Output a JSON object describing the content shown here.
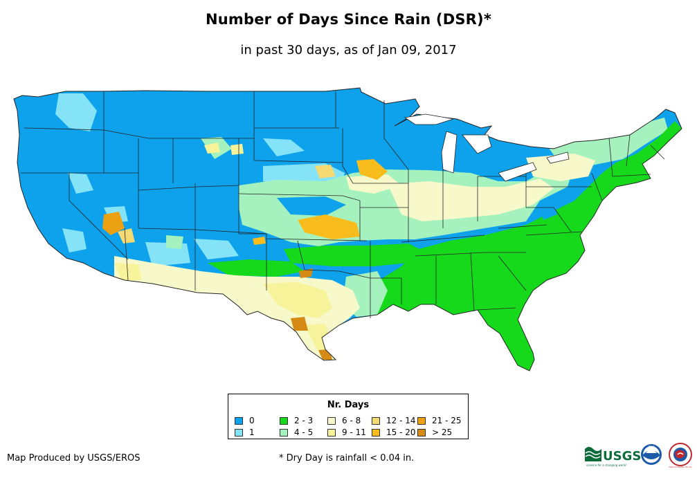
{
  "title": "Number of Days Since Rain (DSR)*",
  "subtitle": "in past 30 days, as of Jan 09, 2017",
  "legend": {
    "title": "Nr. Days",
    "items": [
      {
        "label": "0",
        "color": "#0ea1ec"
      },
      {
        "label": "1",
        "color": "#85e3f7"
      },
      {
        "label": "2 - 3",
        "color": "#16d91c"
      },
      {
        "label": "4 - 5",
        "color": "#a5f2bf"
      },
      {
        "label": "6 - 8",
        "color": "#f8f9ca"
      },
      {
        "label": "9 - 11",
        "color": "#f6f39a"
      },
      {
        "label": "12 - 14",
        "color": "#f5d973"
      },
      {
        "label": "15 - 20",
        "color": "#f8bd1c"
      },
      {
        "label": "21 - 25",
        "color": "#eca112"
      },
      {
        "label": "> 25",
        "color": "#d58a16"
      }
    ]
  },
  "footer": {
    "producer": "Map Produced by USGS/EROS",
    "note": "* Dry Day is rainfall < 0.04 in."
  },
  "logos": {
    "usgs": "USGS",
    "usgs_tagline": "science for a changing world",
    "noaa": "NOAA",
    "nws": "National Weather Service"
  }
}
